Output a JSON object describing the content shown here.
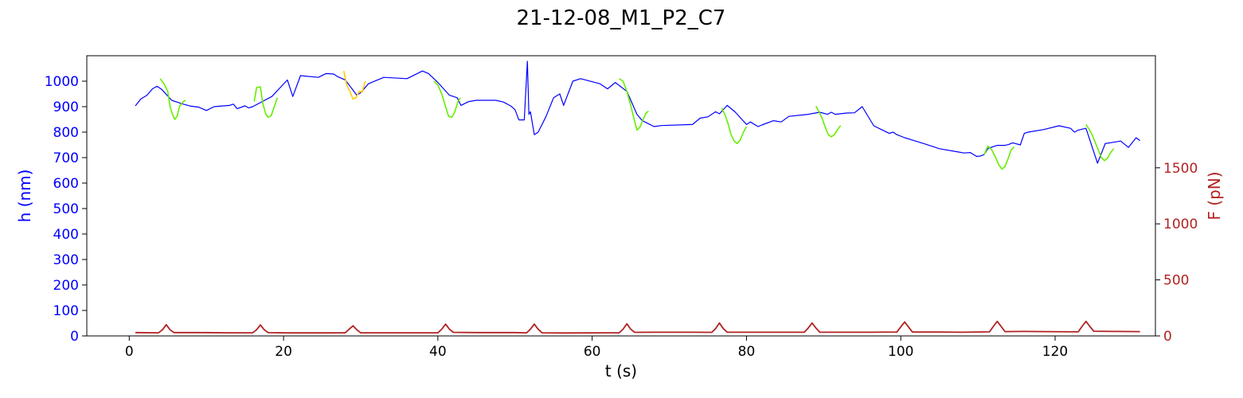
{
  "chart_data": {
    "type": "line",
    "title": "21-12-08_M1_P2_C7",
    "xlabel": "t (s)",
    "ylabel_left": "h (nm)",
    "ylabel_right": "F (pN)",
    "xlim": [
      -5.5,
      133
    ],
    "ylim_left": [
      0,
      1100
    ],
    "ylim_right": [
      0,
      2500
    ],
    "x_ticks": [
      0,
      20,
      40,
      60,
      80,
      100,
      120
    ],
    "y_left_ticks": [
      0,
      100,
      200,
      300,
      400,
      500,
      600,
      700,
      800,
      900,
      1000
    ],
    "y_right_ticks": [
      0,
      500,
      1000,
      1500
    ],
    "colors": {
      "height": "#0000ff",
      "segment_green": "#66ee00",
      "segment_yellow": "#ffcc00",
      "force": "#b22222",
      "left_axis": "#0000ff",
      "right_axis": "#b22222"
    },
    "series": [
      {
        "axis": "left",
        "color": "#0000ff",
        "points": [
          [
            0.8,
            903
          ],
          [
            1.5,
            930
          ],
          [
            2.3,
            945
          ],
          [
            3.0,
            970
          ],
          [
            3.6,
            980
          ],
          [
            4.2,
            968
          ],
          [
            5.5,
            925
          ],
          [
            7.0,
            910
          ],
          [
            8.0,
            902
          ],
          [
            9.0,
            898
          ],
          [
            10.0,
            885
          ],
          [
            11.0,
            900
          ],
          [
            13.0,
            905
          ],
          [
            13.5,
            910
          ],
          [
            14.0,
            892
          ],
          [
            15.0,
            903
          ],
          [
            15.5,
            895
          ],
          [
            16.0,
            900
          ],
          [
            18.5,
            940
          ],
          [
            20.5,
            1005
          ],
          [
            21.2,
            940
          ],
          [
            22.2,
            1022
          ],
          [
            24.5,
            1015
          ],
          [
            25.5,
            1030
          ],
          [
            26.5,
            1028
          ],
          [
            27.0,
            1018
          ],
          [
            28.0,
            1005
          ],
          [
            29.5,
            945
          ],
          [
            30.0,
            955
          ],
          [
            31.0,
            990
          ],
          [
            33.0,
            1015
          ],
          [
            36.0,
            1010
          ],
          [
            38.0,
            1040
          ],
          [
            38.8,
            1030
          ],
          [
            40.0,
            995
          ],
          [
            41.5,
            945
          ],
          [
            42.5,
            935
          ],
          [
            43.0,
            905
          ],
          [
            44.0,
            920
          ],
          [
            45.0,
            925
          ],
          [
            47.5,
            925
          ],
          [
            48.5,
            918
          ],
          [
            49.5,
            902
          ],
          [
            50.0,
            888
          ],
          [
            50.5,
            848
          ],
          [
            51.2,
            848
          ],
          [
            51.6,
            1078
          ],
          [
            51.8,
            870
          ],
          [
            52.0,
            880
          ],
          [
            52.5,
            790
          ],
          [
            53.0,
            800
          ],
          [
            54.0,
            860
          ],
          [
            55.0,
            935
          ],
          [
            55.8,
            950
          ],
          [
            56.3,
            905
          ],
          [
            57.5,
            1000
          ],
          [
            58.5,
            1010
          ],
          [
            61.0,
            990
          ],
          [
            62.0,
            970
          ],
          [
            63.0,
            995
          ],
          [
            64.5,
            960
          ],
          [
            65.8,
            870
          ],
          [
            66.5,
            845
          ],
          [
            67.5,
            830
          ],
          [
            68.0,
            822
          ],
          [
            69.0,
            826
          ],
          [
            73.0,
            830
          ],
          [
            74.0,
            855
          ],
          [
            75.0,
            860
          ],
          [
            76.0,
            880
          ],
          [
            76.5,
            872
          ],
          [
            77.5,
            905
          ],
          [
            78.5,
            880
          ],
          [
            80.0,
            830
          ],
          [
            80.5,
            840
          ],
          [
            81.5,
            822
          ],
          [
            82.0,
            828
          ],
          [
            83.5,
            845
          ],
          [
            84.5,
            840
          ],
          [
            85.5,
            862
          ],
          [
            88.0,
            870
          ],
          [
            89.5,
            878
          ],
          [
            90.5,
            870
          ],
          [
            91.0,
            878
          ],
          [
            91.5,
            870
          ],
          [
            93.0,
            875
          ],
          [
            94.0,
            876
          ],
          [
            95.0,
            900
          ],
          [
            96.5,
            825
          ],
          [
            97.5,
            810
          ],
          [
            98.5,
            795
          ],
          [
            99.0,
            800
          ],
          [
            99.5,
            790
          ],
          [
            100.5,
            778
          ],
          [
            103.0,
            755
          ],
          [
            105.0,
            735
          ],
          [
            107.5,
            722
          ],
          [
            108.2,
            718
          ],
          [
            109.0,
            720
          ],
          [
            109.8,
            705
          ],
          [
            110.3,
            706
          ],
          [
            110.8,
            712
          ],
          [
            111.3,
            736
          ],
          [
            112.5,
            748
          ],
          [
            113.5,
            748
          ],
          [
            114.0,
            752
          ],
          [
            114.5,
            758
          ],
          [
            115.5,
            750
          ],
          [
            116.0,
            795
          ],
          [
            116.5,
            800
          ],
          [
            118.5,
            810
          ],
          [
            120.5,
            825
          ],
          [
            122.0,
            815
          ],
          [
            122.5,
            800
          ],
          [
            123.0,
            808
          ],
          [
            124.0,
            815
          ],
          [
            125.5,
            678
          ],
          [
            126.5,
            755
          ],
          [
            127.5,
            760
          ],
          [
            128.5,
            765
          ],
          [
            129.5,
            740
          ],
          [
            130.5,
            778
          ],
          [
            131.0,
            767
          ]
        ]
      },
      {
        "axis": "left",
        "color": "#66ee00",
        "points": [
          [
            4.0,
            1010
          ],
          [
            4.5,
            990
          ],
          [
            5.0,
            960
          ],
          [
            5.3,
            900
          ],
          [
            5.6,
            870
          ],
          [
            5.9,
            850
          ],
          [
            6.2,
            862
          ],
          [
            6.5,
            900
          ],
          [
            7.0,
            920
          ],
          [
            7.3,
            925
          ]
        ]
      },
      {
        "axis": "left",
        "color": "#66ee00",
        "points": [
          [
            16.2,
            920
          ],
          [
            16.5,
            975
          ],
          [
            17.0,
            978
          ],
          [
            17.3,
            915
          ],
          [
            17.7,
            870
          ],
          [
            18.0,
            858
          ],
          [
            18.4,
            865
          ],
          [
            18.8,
            900
          ],
          [
            19.2,
            935
          ]
        ]
      },
      {
        "axis": "left",
        "color": "#ffcc00",
        "points": [
          [
            27.8,
            1040
          ],
          [
            28.2,
            985
          ],
          [
            28.6,
            960
          ],
          [
            29.0,
            930
          ],
          [
            29.4,
            935
          ],
          [
            29.8,
            960
          ],
          [
            30.2,
            958
          ],
          [
            30.6,
            1000
          ]
        ]
      },
      {
        "axis": "left",
        "color": "#66ee00",
        "points": [
          [
            39.5,
            1000
          ],
          [
            40.0,
            985
          ],
          [
            40.5,
            950
          ],
          [
            41.0,
            900
          ],
          [
            41.4,
            862
          ],
          [
            41.8,
            858
          ],
          [
            42.2,
            880
          ],
          [
            42.6,
            920
          ],
          [
            42.9,
            935
          ]
        ]
      },
      {
        "axis": "left",
        "color": "#66ee00",
        "points": [
          [
            63.5,
            1010
          ],
          [
            64.0,
            1000
          ],
          [
            64.5,
            960
          ],
          [
            65.0,
            905
          ],
          [
            65.4,
            855
          ],
          [
            65.8,
            808
          ],
          [
            66.2,
            820
          ],
          [
            66.6,
            850
          ],
          [
            67.0,
            876
          ],
          [
            67.3,
            882
          ]
        ]
      },
      {
        "axis": "left",
        "color": "#66ee00",
        "points": [
          [
            76.8,
            895
          ],
          [
            77.2,
            870
          ],
          [
            77.6,
            835
          ],
          [
            78.0,
            790
          ],
          [
            78.4,
            765
          ],
          [
            78.8,
            755
          ],
          [
            79.2,
            770
          ],
          [
            79.6,
            800
          ],
          [
            80.0,
            822
          ]
        ]
      },
      {
        "axis": "left",
        "color": "#66ee00",
        "points": [
          [
            89.0,
            902
          ],
          [
            89.4,
            880
          ],
          [
            89.8,
            855
          ],
          [
            90.2,
            820
          ],
          [
            90.6,
            790
          ],
          [
            91.0,
            782
          ],
          [
            91.4,
            790
          ],
          [
            91.8,
            810
          ],
          [
            92.2,
            826
          ]
        ]
      },
      {
        "axis": "left",
        "color": "#66ee00",
        "points": [
          [
            110.8,
            712
          ],
          [
            111.3,
            745
          ],
          [
            111.8,
            730
          ],
          [
            112.3,
            700
          ],
          [
            112.7,
            672
          ],
          [
            113.1,
            655
          ],
          [
            113.5,
            665
          ],
          [
            113.9,
            695
          ],
          [
            114.3,
            730
          ],
          [
            114.7,
            742
          ]
        ]
      },
      {
        "axis": "left",
        "color": "#66ee00",
        "points": [
          [
            124.0,
            830
          ],
          [
            124.4,
            812
          ],
          [
            124.8,
            790
          ],
          [
            125.2,
            760
          ],
          [
            125.6,
            730
          ],
          [
            126.0,
            700
          ],
          [
            126.4,
            688
          ],
          [
            126.8,
            698
          ],
          [
            127.2,
            720
          ],
          [
            127.6,
            735
          ]
        ]
      },
      {
        "axis": "right",
        "color": "#b22222",
        "points": [
          [
            0.8,
            30
          ],
          [
            3.8,
            28
          ],
          [
            4.3,
            55
          ],
          [
            4.8,
            100
          ],
          [
            5.3,
            55
          ],
          [
            5.8,
            30
          ],
          [
            9.0,
            30
          ],
          [
            13.0,
            28
          ],
          [
            16.0,
            28
          ],
          [
            16.5,
            55
          ],
          [
            17.0,
            98
          ],
          [
            17.5,
            55
          ],
          [
            18.0,
            29
          ],
          [
            20.5,
            27
          ],
          [
            22.0,
            27
          ],
          [
            26.0,
            27
          ],
          [
            28.0,
            28
          ],
          [
            28.5,
            60
          ],
          [
            29.0,
            90
          ],
          [
            29.5,
            55
          ],
          [
            30.0,
            28
          ],
          [
            35.0,
            28
          ],
          [
            40.0,
            28
          ],
          [
            40.5,
            60
          ],
          [
            41.0,
            105
          ],
          [
            41.5,
            60
          ],
          [
            42.0,
            32
          ],
          [
            45.0,
            30
          ],
          [
            50.0,
            30
          ],
          [
            51.5,
            28
          ],
          [
            52.0,
            60
          ],
          [
            52.5,
            105
          ],
          [
            53.0,
            60
          ],
          [
            53.5,
            28
          ],
          [
            56.0,
            26
          ],
          [
            60.0,
            27
          ],
          [
            63.5,
            28
          ],
          [
            64.0,
            60
          ],
          [
            64.5,
            108
          ],
          [
            65.0,
            60
          ],
          [
            65.5,
            32
          ],
          [
            68.0,
            33
          ],
          [
            73.0,
            33
          ],
          [
            75.5,
            32
          ],
          [
            76.0,
            65
          ],
          [
            76.5,
            115
          ],
          [
            77.0,
            65
          ],
          [
            77.5,
            33
          ],
          [
            80.0,
            33
          ],
          [
            84.0,
            33
          ],
          [
            87.5,
            33
          ],
          [
            88.0,
            70
          ],
          [
            88.5,
            115
          ],
          [
            89.0,
            70
          ],
          [
            89.5,
            33
          ],
          [
            92.0,
            33
          ],
          [
            96.0,
            33
          ],
          [
            99.5,
            35
          ],
          [
            100.0,
            80
          ],
          [
            100.5,
            125
          ],
          [
            101.0,
            80
          ],
          [
            101.5,
            35
          ],
          [
            105.0,
            35
          ],
          [
            108.0,
            33
          ],
          [
            111.5,
            36
          ],
          [
            112.0,
            85
          ],
          [
            112.5,
            130
          ],
          [
            113.0,
            85
          ],
          [
            113.5,
            38
          ],
          [
            116.0,
            40
          ],
          [
            119.0,
            38
          ],
          [
            123.0,
            36
          ],
          [
            123.5,
            85
          ],
          [
            124.0,
            130
          ],
          [
            124.5,
            85
          ],
          [
            125.0,
            42
          ],
          [
            128.0,
            40
          ],
          [
            131.0,
            38
          ]
        ]
      }
    ]
  }
}
